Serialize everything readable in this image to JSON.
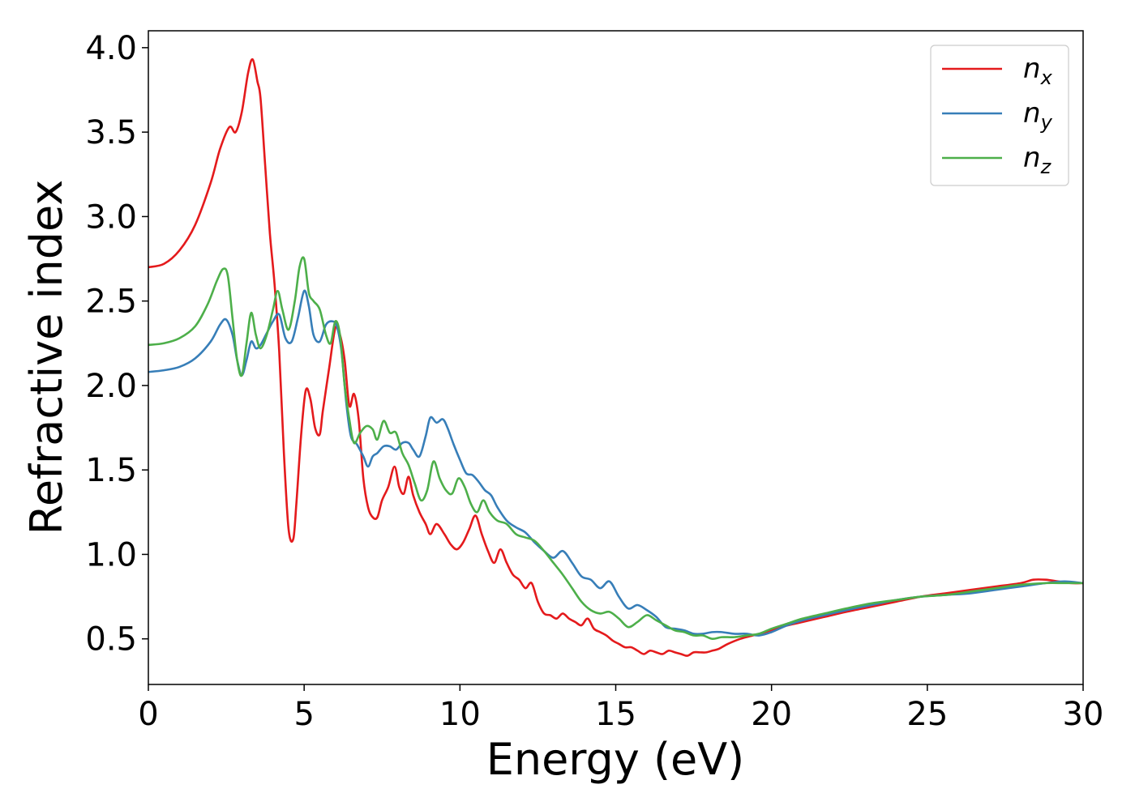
{
  "chart_data": {
    "type": "line",
    "title": "",
    "xlabel": "Energy (eV)",
    "ylabel": "Refractive index",
    "xlim": [
      0,
      30
    ],
    "ylim": [
      0.23,
      4.1
    ],
    "xticks": [
      0,
      5,
      10,
      15,
      20,
      25,
      30
    ],
    "xtick_labels": [
      "0",
      "5",
      "10",
      "15",
      "20",
      "25",
      "30"
    ],
    "yticks": [
      0.5,
      1.0,
      1.5,
      2.0,
      2.5,
      3.0,
      3.5,
      4.0
    ],
    "ytick_labels": [
      "0.5",
      "1.0",
      "1.5",
      "2.0",
      "2.5",
      "3.0",
      "3.5",
      "4.0"
    ],
    "grid": false,
    "legend_position": "top-right",
    "series": [
      {
        "name": "n",
        "subscript": "x",
        "color": "#e41a1c",
        "x": [
          0,
          0.5,
          1.0,
          1.5,
          2.0,
          2.3,
          2.6,
          2.8,
          3.0,
          3.2,
          3.35,
          3.5,
          3.6,
          3.75,
          3.9,
          4.05,
          4.2,
          4.35,
          4.5,
          4.65,
          4.75,
          4.9,
          5.05,
          5.2,
          5.35,
          5.5,
          5.6,
          5.8,
          6.0,
          6.15,
          6.3,
          6.45,
          6.6,
          6.75,
          6.9,
          7.05,
          7.2,
          7.35,
          7.5,
          7.7,
          7.9,
          8.05,
          8.2,
          8.35,
          8.5,
          8.7,
          8.9,
          9.05,
          9.25,
          9.5,
          9.7,
          9.9,
          10.1,
          10.3,
          10.5,
          10.7,
          10.9,
          11.1,
          11.3,
          11.5,
          11.7,
          11.9,
          12.1,
          12.3,
          12.5,
          12.7,
          12.9,
          13.1,
          13.3,
          13.5,
          13.7,
          13.9,
          14.1,
          14.3,
          14.5,
          14.7,
          14.9,
          15.1,
          15.3,
          15.5,
          15.7,
          15.9,
          16.1,
          16.3,
          16.5,
          16.7,
          16.9,
          17.1,
          17.3,
          17.5,
          17.7,
          17.9,
          18.1,
          18.3,
          18.6,
          19.0,
          19.4,
          19.8,
          20.3,
          21.0,
          21.7,
          22.4,
          23.2,
          24.0,
          24.8,
          25.6,
          26.4,
          27.2,
          28.0,
          28.4,
          28.8,
          29.2,
          29.6,
          30.0
        ],
        "y": [
          2.7,
          2.72,
          2.8,
          2.95,
          3.2,
          3.4,
          3.53,
          3.5,
          3.62,
          3.85,
          3.93,
          3.8,
          3.7,
          3.3,
          2.9,
          2.6,
          2.2,
          1.6,
          1.15,
          1.09,
          1.3,
          1.7,
          1.97,
          1.92,
          1.75,
          1.71,
          1.85,
          2.1,
          2.34,
          2.3,
          2.15,
          1.88,
          1.95,
          1.8,
          1.45,
          1.28,
          1.22,
          1.22,
          1.32,
          1.4,
          1.52,
          1.4,
          1.36,
          1.46,
          1.35,
          1.25,
          1.18,
          1.12,
          1.18,
          1.12,
          1.06,
          1.03,
          1.07,
          1.15,
          1.23,
          1.12,
          1.02,
          0.95,
          1.03,
          0.95,
          0.88,
          0.85,
          0.8,
          0.83,
          0.72,
          0.65,
          0.64,
          0.62,
          0.65,
          0.62,
          0.6,
          0.58,
          0.62,
          0.56,
          0.54,
          0.52,
          0.49,
          0.47,
          0.45,
          0.45,
          0.43,
          0.41,
          0.43,
          0.42,
          0.41,
          0.43,
          0.42,
          0.41,
          0.4,
          0.42,
          0.42,
          0.42,
          0.43,
          0.44,
          0.47,
          0.5,
          0.52,
          0.54,
          0.57,
          0.6,
          0.63,
          0.66,
          0.69,
          0.72,
          0.75,
          0.77,
          0.79,
          0.81,
          0.83,
          0.85,
          0.85,
          0.84,
          0.83,
          0.83
        ]
      },
      {
        "name": "n",
        "subscript": "y",
        "color": "#377eb8",
        "x": [
          0,
          0.5,
          1.0,
          1.5,
          2.0,
          2.3,
          2.5,
          2.7,
          2.85,
          3.0,
          3.15,
          3.3,
          3.45,
          3.6,
          3.8,
          4.0,
          4.2,
          4.4,
          4.6,
          4.8,
          5.0,
          5.15,
          5.3,
          5.5,
          5.7,
          5.9,
          6.05,
          6.2,
          6.35,
          6.5,
          6.7,
          6.9,
          7.05,
          7.2,
          7.35,
          7.55,
          7.75,
          7.95,
          8.15,
          8.35,
          8.5,
          8.7,
          8.9,
          9.05,
          9.25,
          9.45,
          9.6,
          9.8,
          10.0,
          10.2,
          10.4,
          10.6,
          10.8,
          11.0,
          11.2,
          11.5,
          11.8,
          12.1,
          12.4,
          12.7,
          13.0,
          13.3,
          13.6,
          13.9,
          14.2,
          14.5,
          14.8,
          15.1,
          15.4,
          15.7,
          16.0,
          16.3,
          16.6,
          16.9,
          17.2,
          17.5,
          17.8,
          18.1,
          18.4,
          18.8,
          19.2,
          19.6,
          20.0,
          20.5,
          21.0,
          21.7,
          22.4,
          23.2,
          24.0,
          24.8,
          25.6,
          26.4,
          27.2,
          28.0,
          28.8,
          29.4,
          30.0
        ],
        "y": [
          2.08,
          2.09,
          2.11,
          2.16,
          2.26,
          2.36,
          2.39,
          2.3,
          2.15,
          2.06,
          2.15,
          2.26,
          2.22,
          2.24,
          2.31,
          2.38,
          2.42,
          2.28,
          2.26,
          2.4,
          2.56,
          2.47,
          2.3,
          2.26,
          2.36,
          2.38,
          2.35,
          2.2,
          1.9,
          1.7,
          1.65,
          1.58,
          1.52,
          1.58,
          1.6,
          1.64,
          1.64,
          1.62,
          1.66,
          1.66,
          1.62,
          1.58,
          1.7,
          1.81,
          1.78,
          1.8,
          1.75,
          1.65,
          1.56,
          1.48,
          1.47,
          1.43,
          1.38,
          1.35,
          1.28,
          1.2,
          1.16,
          1.13,
          1.07,
          1.02,
          0.98,
          1.02,
          0.95,
          0.87,
          0.85,
          0.8,
          0.84,
          0.75,
          0.68,
          0.7,
          0.67,
          0.63,
          0.57,
          0.56,
          0.55,
          0.53,
          0.53,
          0.54,
          0.54,
          0.53,
          0.53,
          0.52,
          0.54,
          0.58,
          0.61,
          0.64,
          0.67,
          0.7,
          0.73,
          0.75,
          0.76,
          0.77,
          0.79,
          0.81,
          0.83,
          0.84,
          0.83
        ]
      },
      {
        "name": "n",
        "subscript": "z",
        "color": "#4daf4a",
        "x": [
          0,
          0.5,
          1.0,
          1.5,
          1.9,
          2.2,
          2.4,
          2.55,
          2.7,
          2.85,
          3.0,
          3.15,
          3.3,
          3.45,
          3.6,
          3.8,
          4.0,
          4.15,
          4.3,
          4.5,
          4.7,
          4.85,
          5.0,
          5.15,
          5.3,
          5.5,
          5.7,
          5.85,
          6.0,
          6.15,
          6.3,
          6.45,
          6.6,
          6.8,
          7.0,
          7.2,
          7.35,
          7.55,
          7.75,
          7.95,
          8.15,
          8.35,
          8.55,
          8.75,
          8.95,
          9.15,
          9.35,
          9.55,
          9.75,
          9.95,
          10.15,
          10.35,
          10.55,
          10.75,
          10.95,
          11.2,
          11.5,
          11.8,
          12.1,
          12.4,
          12.7,
          13.0,
          13.3,
          13.6,
          13.9,
          14.2,
          14.5,
          14.8,
          15.1,
          15.4,
          15.7,
          16.0,
          16.3,
          16.6,
          16.9,
          17.2,
          17.5,
          17.8,
          18.1,
          18.4,
          18.8,
          19.2,
          19.6,
          20.0,
          20.5,
          21.0,
          21.7,
          22.4,
          23.2,
          24.0,
          24.8,
          25.6,
          26.4,
          27.2,
          28.0,
          28.8,
          29.4,
          30.0
        ],
        "y": [
          2.24,
          2.25,
          2.28,
          2.35,
          2.48,
          2.62,
          2.69,
          2.65,
          2.4,
          2.15,
          2.06,
          2.25,
          2.43,
          2.3,
          2.22,
          2.3,
          2.45,
          2.56,
          2.45,
          2.33,
          2.5,
          2.7,
          2.75,
          2.55,
          2.5,
          2.45,
          2.3,
          2.25,
          2.38,
          2.3,
          2.0,
          1.8,
          1.66,
          1.72,
          1.76,
          1.74,
          1.68,
          1.79,
          1.72,
          1.72,
          1.6,
          1.53,
          1.42,
          1.32,
          1.38,
          1.55,
          1.45,
          1.38,
          1.36,
          1.45,
          1.4,
          1.3,
          1.25,
          1.32,
          1.25,
          1.2,
          1.18,
          1.12,
          1.1,
          1.08,
          1.02,
          0.95,
          0.88,
          0.8,
          0.72,
          0.67,
          0.65,
          0.66,
          0.62,
          0.57,
          0.6,
          0.64,
          0.61,
          0.58,
          0.55,
          0.54,
          0.52,
          0.52,
          0.5,
          0.51,
          0.51,
          0.52,
          0.53,
          0.56,
          0.59,
          0.62,
          0.65,
          0.68,
          0.71,
          0.73,
          0.75,
          0.76,
          0.78,
          0.8,
          0.82,
          0.83,
          0.83,
          0.83
        ]
      }
    ]
  }
}
